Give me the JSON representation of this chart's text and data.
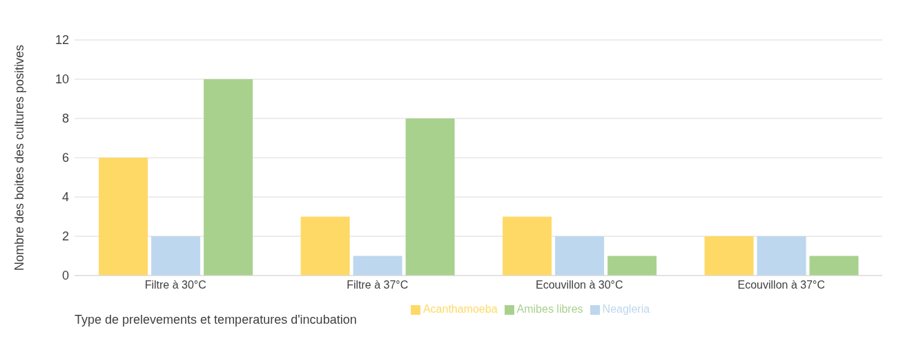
{
  "chart_data": {
    "type": "bar",
    "xlabel": "Type de prelevements et temperatures d'incubation",
    "ylabel": "Nombre des boites des cultures positives",
    "categories": [
      "Filtre à 30°C",
      "Filtre à 37°C",
      "Ecouvillon à 30°C",
      "Ecouvillon à 37°C"
    ],
    "series": [
      {
        "name": "Acanthamoeba",
        "color": "#ffd966",
        "values": [
          6,
          3,
          3,
          2
        ]
      },
      {
        "name": "Neagleria",
        "color": "#bdd7ee",
        "values": [
          2,
          1,
          2,
          2
        ]
      },
      {
        "name": "Amibes libres",
        "color": "#a9d18e",
        "values": [
          10,
          8,
          1,
          1
        ]
      }
    ],
    "ylim": [
      0,
      12
    ],
    "yticks": [
      0,
      2,
      4,
      6,
      8,
      10,
      12
    ],
    "grid": "y",
    "legend": "bottom"
  }
}
